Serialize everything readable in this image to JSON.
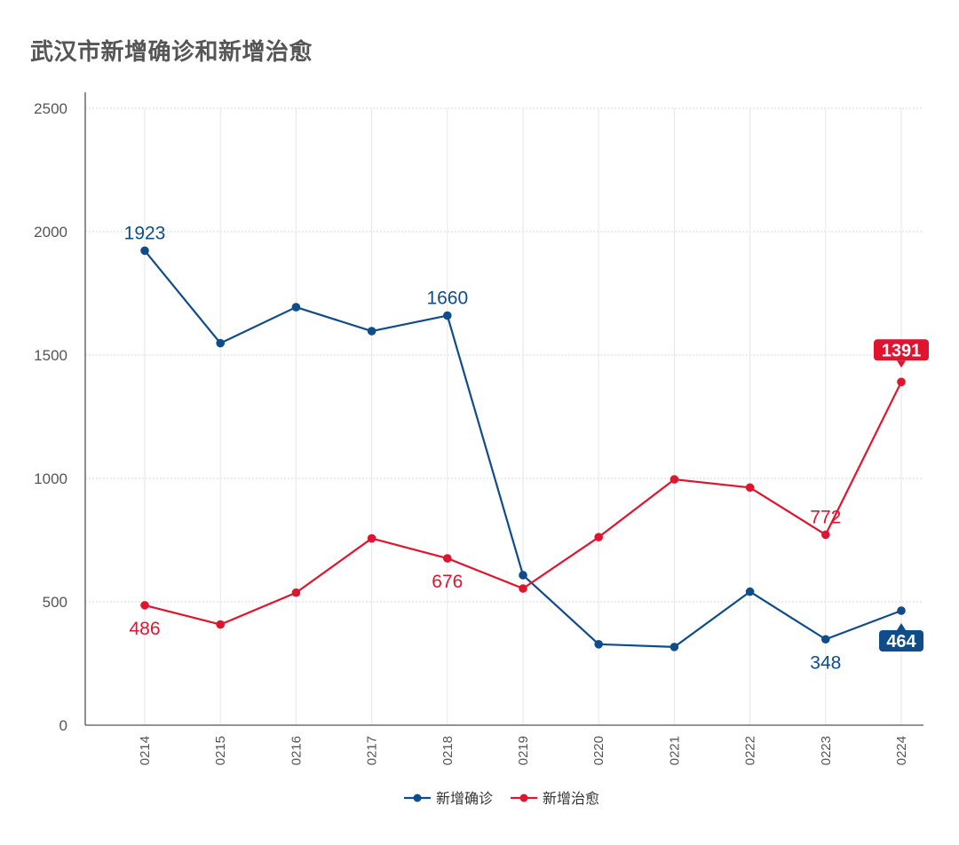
{
  "chart_data": {
    "type": "line",
    "title": "武汉市新增确诊和新增治愈",
    "categories": [
      "0214",
      "0215",
      "0216",
      "0217",
      "0218",
      "0219",
      "0220",
      "0221",
      "0222",
      "0223",
      "0224"
    ],
    "ylim": [
      0,
      2500
    ],
    "yticks": [
      "0",
      "500",
      "1000",
      "1500",
      "2000",
      "2500"
    ],
    "grid": true,
    "legend_position": "bottom",
    "series": [
      {
        "name": "新增确诊",
        "color": "#0f4c8a",
        "values": [
          1923,
          1548,
          1694,
          1597,
          1660,
          608,
          328,
          317,
          541,
          348,
          464
        ],
        "data_labels": [
          {
            "index": 0,
            "text": "1923",
            "style": "plain"
          },
          {
            "index": 4,
            "text": "1660",
            "style": "plain"
          },
          {
            "index": 9,
            "text": "348",
            "style": "plain"
          },
          {
            "index": 10,
            "text": "464",
            "style": "highlight"
          }
        ]
      },
      {
        "name": "新增治愈",
        "color": "#e0142f",
        "values": [
          486,
          408,
          537,
          757,
          676,
          554,
          762,
          996,
          963,
          772,
          1391
        ],
        "data_labels": [
          {
            "index": 0,
            "text": "486",
            "style": "plain"
          },
          {
            "index": 4,
            "text": "676",
            "style": "plain"
          },
          {
            "index": 9,
            "text": "772",
            "style": "plain"
          },
          {
            "index": 10,
            "text": "1391",
            "style": "highlight"
          }
        ]
      }
    ]
  }
}
